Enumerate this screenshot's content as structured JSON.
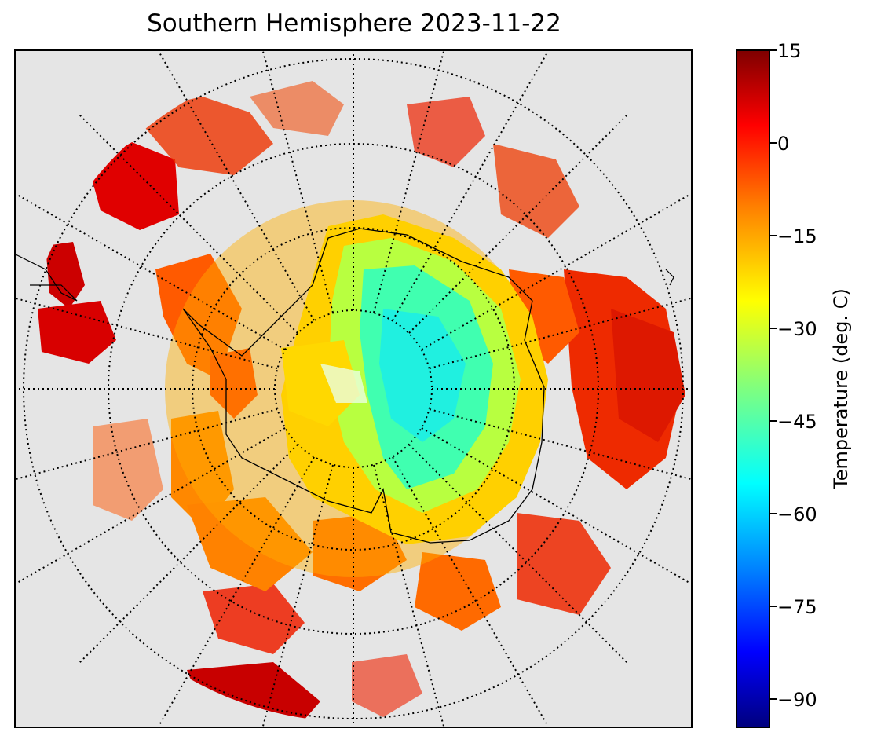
{
  "title": "Southern Hemisphere 2023-11-22",
  "map": {
    "projection": "south-polar-stereographic",
    "background": "#e5e5e5",
    "coastline_color": "#000000",
    "graticule": "dotted black lines",
    "meridian_step_deg": 15,
    "parallel_rings": 4
  },
  "colorbar": {
    "label": "Temperature (deg. C)",
    "colormap": "jet",
    "min": -95,
    "max": 15,
    "ticks": [
      "15",
      "0",
      "−15",
      "−30",
      "−45",
      "−60",
      "−75",
      "−90"
    ]
  }
}
